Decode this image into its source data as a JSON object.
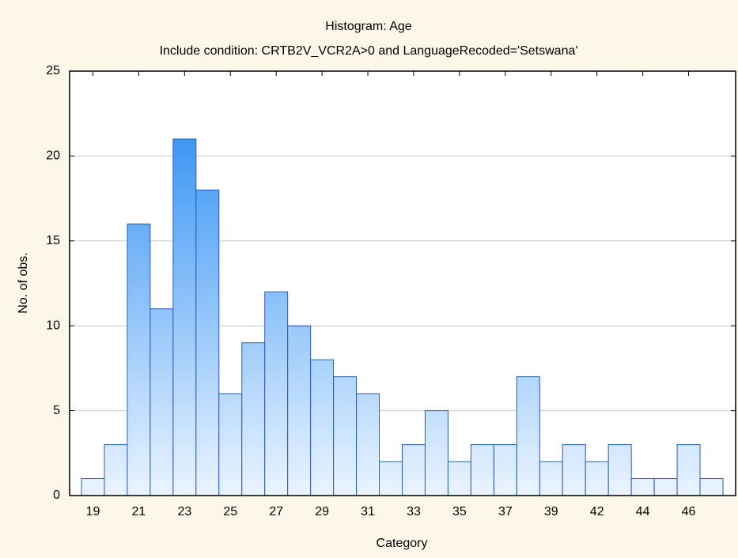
{
  "chart_data": {
    "type": "bar",
    "title": "Histogram: Age",
    "subtitle": "Include condition: CRTB2V_VCR2A>0 and LanguageRecoded='Setswana'",
    "x_label": "Category",
    "y_label": "No. of obs.",
    "categories": [
      "19",
      null,
      "21",
      null,
      "23",
      null,
      "25",
      null,
      "27",
      null,
      "29",
      null,
      "31",
      null,
      "33",
      null,
      "35",
      null,
      "37",
      null,
      "39",
      null,
      "42",
      null,
      "44",
      null,
      "46",
      null
    ],
    "values": [
      1,
      3,
      16,
      11,
      21,
      18,
      6,
      9,
      12,
      10,
      8,
      7,
      6,
      2,
      3,
      5,
      2,
      3,
      3,
      7,
      2,
      3,
      2,
      3,
      1,
      1,
      3,
      1
    ],
    "color": "#1e86f2",
    "ylim": [
      0,
      25
    ],
    "yticks": [
      0,
      5,
      10,
      15,
      20,
      25
    ],
    "grid": true
  }
}
